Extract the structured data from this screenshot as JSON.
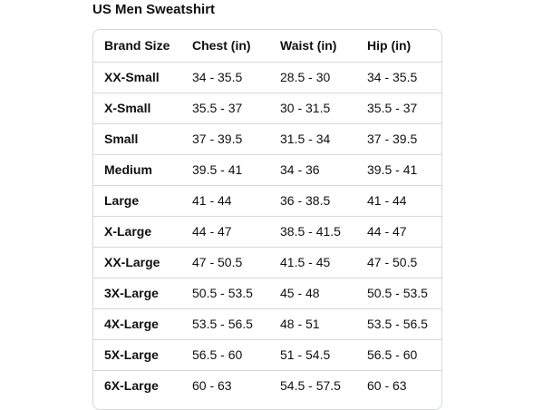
{
  "title": "US Men Sweatshirt",
  "table": {
    "headers": [
      "Brand Size",
      "Chest (in)",
      "Waist (in)",
      "Hip (in)"
    ],
    "rows": [
      [
        "XX-Small",
        "34 - 35.5",
        "28.5 - 30",
        "34 - 35.5"
      ],
      [
        "X-Small",
        "35.5 - 37",
        "30 - 31.5",
        "35.5 - 37"
      ],
      [
        "Small",
        "37 - 39.5",
        "31.5 - 34",
        "37 - 39.5"
      ],
      [
        "Medium",
        "39.5 - 41",
        "34 - 36",
        "39.5 - 41"
      ],
      [
        "Large",
        "41 - 44",
        "36 - 38.5",
        "41 - 44"
      ],
      [
        "X-Large",
        "44 - 47",
        "38.5 - 41.5",
        "44 - 47"
      ],
      [
        "XX-Large",
        "47 - 50.5",
        "41.5 - 45",
        "47 - 50.5"
      ],
      [
        "3X-Large",
        "50.5 - 53.5",
        "45 - 48",
        "50.5 - 53.5"
      ],
      [
        "4X-Large",
        "53.5 - 56.5",
        "48 - 51",
        "53.5 - 56.5"
      ],
      [
        "5X-Large",
        "56.5 - 60",
        "51 - 54.5",
        "56.5 - 60"
      ],
      [
        "6X-Large",
        "60 - 63",
        "54.5 - 57.5",
        "60 - 63"
      ]
    ]
  }
}
